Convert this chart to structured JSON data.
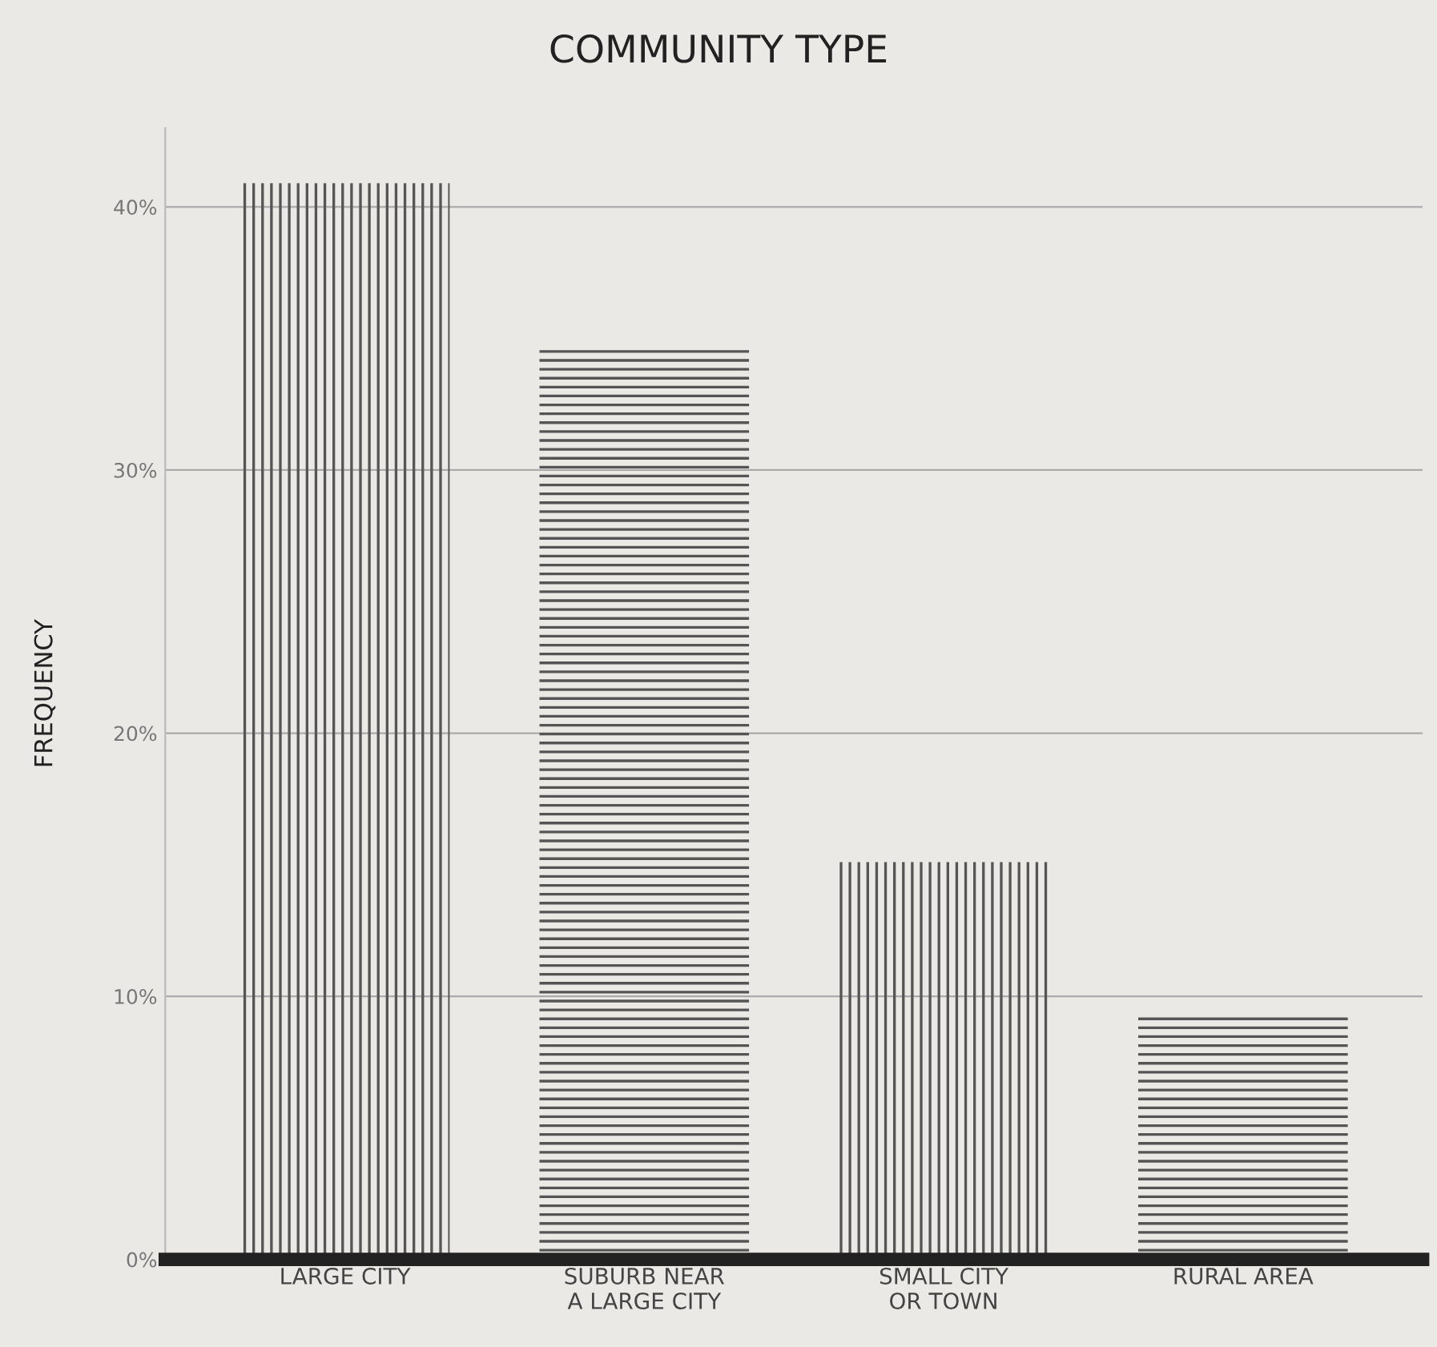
{
  "chart_data": {
    "type": "bar",
    "title": "COMMUNITY TYPE",
    "ylabel": "FREQUENCY",
    "categories": [
      "LARGE CITY",
      "SUBURB NEAR\nA LARGE CITY",
      "SMALL CITY\nOR TOWN",
      "RURAL AREA"
    ],
    "values": [
      40.9,
      34.6,
      15.1,
      9.3
    ],
    "color": "#555555",
    "ylim": [
      0,
      43
    ],
    "yticks": [
      {
        "value": 0,
        "label": "0%"
      },
      {
        "value": 10,
        "label": "10%"
      },
      {
        "value": 20,
        "label": "20%"
      },
      {
        "value": 30,
        "label": "30%"
      },
      {
        "value": 40,
        "label": "40%"
      }
    ],
    "grid": "y"
  }
}
